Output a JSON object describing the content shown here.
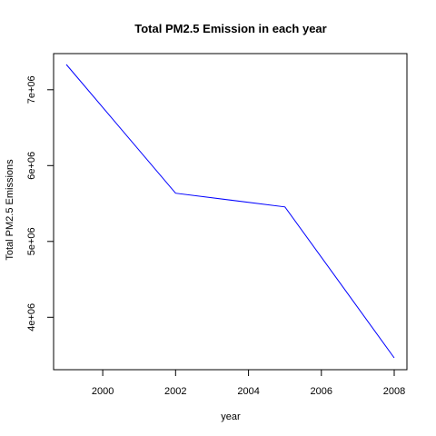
{
  "chart_data": {
    "type": "line",
    "title": "Total PM2.5 Emission in each year",
    "xlabel": "year",
    "ylabel": "Total PM2.5 Emissions",
    "x": [
      1999,
      2002,
      2005,
      2008
    ],
    "series": [
      {
        "values": [
          7332967,
          5635780,
          5454703,
          3464206
        ],
        "color": "#0000ff"
      }
    ],
    "xlim": [
      1999,
      2008
    ],
    "ylim": [
      3464206,
      7332967
    ],
    "x_ticks": [
      2000,
      2002,
      2004,
      2006,
      2008
    ],
    "x_tick_labels": [
      "2000",
      "2002",
      "2004",
      "2006",
      "2008"
    ],
    "y_ticks": [
      4000000,
      5000000,
      6000000,
      7000000
    ],
    "y_tick_labels": [
      "4e+06",
      "5e+06",
      "6e+06",
      "7e+06"
    ],
    "grid": false,
    "legend": "none"
  }
}
